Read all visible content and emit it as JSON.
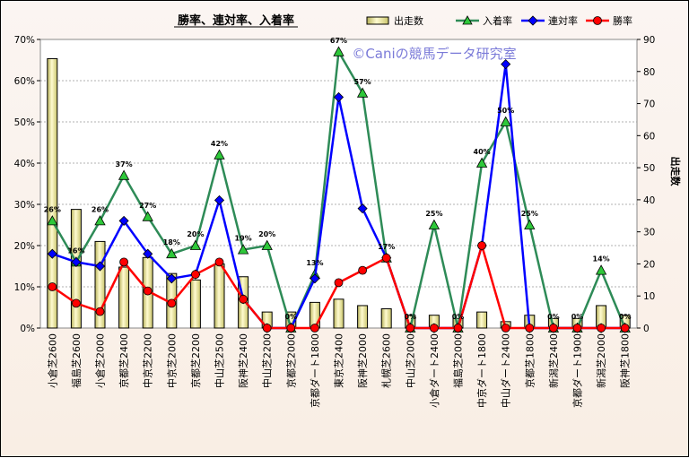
{
  "chart_data": {
    "type": "bar+line",
    "title": "勝率、連対率、入着率",
    "watermark": "©Caniの競馬データ研究室",
    "y2label": "出走数",
    "ylim": [
      0,
      70
    ],
    "y2lim": [
      0,
      90
    ],
    "yticks": [
      "0%",
      "10%",
      "20%",
      "30%",
      "40%",
      "50%",
      "60%",
      "70%"
    ],
    "y2ticks": [
      "0",
      "10",
      "20",
      "30",
      "40",
      "50",
      "60",
      "70",
      "80",
      "90"
    ],
    "legend_position": "top-right",
    "categories": [
      "小倉芝2600",
      "福島芝2600",
      "小倉芝2000",
      "京都芝2400",
      "中京芝2200",
      "中京芝2000",
      "京都芝2200",
      "中山芝2500",
      "阪神芝2400",
      "中山芝2200",
      "京都芝2000",
      "京都ダート1800",
      "東京芝2400",
      "阪神芝2000",
      "札幌芝2600",
      "中山芝2000",
      "小倉ダート2400",
      "福島芝2000",
      "中京ダート1800",
      "中山ダート2400",
      "京都芝1800",
      "新潟芝2400",
      "京都ダート1900",
      "新潟芝2000",
      "阪神芝1800"
    ],
    "series": [
      {
        "name": "出走数",
        "type": "bar",
        "axis": "right",
        "color": "#f0ec9a",
        "values": [
          84,
          37,
          27,
          19,
          22,
          17,
          15,
          20,
          16,
          5,
          5,
          8,
          9,
          7,
          6,
          4,
          4,
          3,
          5,
          2,
          4,
          3,
          3,
          7,
          4
        ]
      },
      {
        "name": "入着率",
        "type": "line",
        "axis": "left",
        "color": "#2e8b57",
        "marker_color": "#2ec83a",
        "values": [
          26,
          16,
          26,
          37,
          27,
          18,
          20,
          42,
          19,
          20,
          0,
          13,
          67,
          57,
          17,
          0,
          25,
          0,
          40,
          50,
          25,
          0,
          0,
          14,
          0
        ]
      },
      {
        "name": "連対率",
        "type": "line",
        "axis": "left",
        "color": "#0000ff",
        "marker_color": "#0000ff",
        "values": [
          18,
          16,
          15,
          26,
          18,
          12,
          13,
          31,
          7,
          0,
          0,
          12,
          56,
          29,
          17,
          0,
          0,
          0,
          20,
          64,
          0,
          0,
          0,
          0,
          0
        ]
      },
      {
        "name": "勝率",
        "type": "line",
        "axis": "left",
        "color": "#ff0000",
        "marker_color": "#ff0000",
        "values": [
          10,
          6,
          4,
          16,
          9,
          6,
          13,
          16,
          7,
          0,
          0,
          0,
          11,
          14,
          17,
          0,
          0,
          0,
          20,
          0,
          0,
          0,
          0,
          0,
          0
        ]
      }
    ],
    "data_labels": [
      "26%",
      "16%",
      "26%",
      "37%",
      "27%",
      "18%",
      "20%",
      "42%",
      "19%",
      "20%",
      "0%",
      "13%",
      "67%",
      "57%",
      "17%",
      "0%",
      "25%",
      "0%",
      "40%",
      "50%",
      "25%",
      "0%",
      "0%",
      "14%",
      "0%"
    ]
  }
}
